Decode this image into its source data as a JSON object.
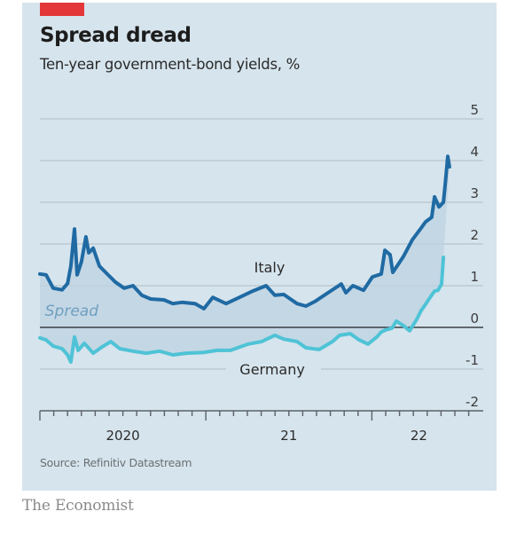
{
  "header": {
    "title": "Spread dread",
    "subtitle": "Ten-year government-bond yields, %"
  },
  "footer": {
    "source": "Source: Refinitiv Datastream",
    "brand": "The Economist"
  },
  "colors": {
    "panel": "#d6e4ed",
    "accent_red": "#e3373a",
    "italy": "#1f6aa3",
    "germany": "#4fc3d6",
    "spread_fill": "#bdd3e2",
    "gridline": "#b9c4cc",
    "zero_line": "#3a3f44"
  },
  "chart_data": {
    "type": "line",
    "title": "Spread dread",
    "subtitle": "Ten-year government-bond yields, %",
    "xlabel": "",
    "ylabel": "%",
    "ylim": [
      -2,
      5
    ],
    "yticks": [
      5,
      4,
      3,
      2,
      1,
      0,
      -1,
      -2
    ],
    "ytick_labels": [
      "5",
      "4",
      "3",
      "2",
      "1",
      "0",
      "-1",
      "-2"
    ],
    "xlim_months": [
      0,
      31
    ],
    "x_unit": "months since Jan 2020",
    "xtick_major": [
      0,
      12,
      24
    ],
    "xtick_labels": [
      {
        "text": "2020",
        "at": 6
      },
      {
        "text": "21",
        "at": 18
      },
      {
        "text": "22",
        "at": 27.4
      }
    ],
    "grid": true,
    "annotations": [
      {
        "text": "Italy",
        "series": "Italy",
        "x": 16.6,
        "y": 1.45,
        "style": "normal"
      },
      {
        "text": "Spread",
        "x": 2.3,
        "y": 0.4,
        "style": "italic"
      },
      {
        "text": "Germany",
        "series": "Germany",
        "x": 16.8,
        "y": -1.0,
        "style": "normal"
      }
    ],
    "shaded_region": "between Italy and Germany (spread)",
    "series": [
      {
        "name": "Italy",
        "x": [
          0,
          0.45,
          0.96,
          1.6,
          2.0,
          2.24,
          2.5,
          2.69,
          3.0,
          3.33,
          3.53,
          3.85,
          4.3,
          4.81,
          5.45,
          6.09,
          6.73,
          7.37,
          8.01,
          8.97,
          9.61,
          10.26,
          11.22,
          11.86,
          12.5,
          13.46,
          14.42,
          15.38,
          16.35,
          16.99,
          17.63,
          18.59,
          19.23,
          19.87,
          20.83,
          21.79,
          22.12,
          22.63,
          23.4,
          24.04,
          24.68,
          24.94,
          25.32,
          25.51,
          26.28,
          26.92,
          27.56,
          27.88,
          28.33,
          28.53,
          28.85,
          29.17,
          29.29,
          29.49,
          29.61
        ],
        "values": [
          1.28,
          1.26,
          0.94,
          0.9,
          1.05,
          1.47,
          2.36,
          1.26,
          1.57,
          2.17,
          1.79,
          1.9,
          1.47,
          1.3,
          1.09,
          0.94,
          1.0,
          0.77,
          0.68,
          0.66,
          0.57,
          0.6,
          0.57,
          0.45,
          0.72,
          0.57,
          0.72,
          0.87,
          1.0,
          0.77,
          0.79,
          0.57,
          0.51,
          0.62,
          0.83,
          1.04,
          0.83,
          1.0,
          0.89,
          1.21,
          1.28,
          1.85,
          1.74,
          1.32,
          1.7,
          2.1,
          2.38,
          2.53,
          2.64,
          3.13,
          2.89,
          3.0,
          3.38,
          4.1,
          3.85
        ]
      },
      {
        "name": "Germany",
        "x": [
          0,
          0.45,
          0.96,
          1.6,
          2.0,
          2.24,
          2.5,
          2.76,
          3.21,
          3.85,
          4.49,
          5.13,
          5.77,
          6.73,
          7.69,
          8.65,
          9.62,
          10.58,
          11.86,
          12.82,
          13.78,
          15.06,
          16.03,
          16.99,
          17.63,
          18.59,
          19.23,
          20.19,
          21.15,
          21.67,
          22.44,
          23.08,
          23.72,
          24.36,
          24.68,
          25.0,
          25.45,
          25.77,
          26.28,
          26.73,
          27.24,
          27.56,
          27.88,
          28.21,
          28.53,
          28.78,
          29.04,
          29.17
        ],
        "values": [
          -0.25,
          -0.3,
          -0.45,
          -0.51,
          -0.66,
          -0.83,
          -0.23,
          -0.55,
          -0.38,
          -0.62,
          -0.47,
          -0.34,
          -0.51,
          -0.57,
          -0.62,
          -0.57,
          -0.66,
          -0.62,
          -0.6,
          -0.55,
          -0.55,
          -0.4,
          -0.34,
          -0.19,
          -0.28,
          -0.34,
          -0.49,
          -0.53,
          -0.34,
          -0.19,
          -0.15,
          -0.3,
          -0.4,
          -0.23,
          -0.11,
          -0.06,
          -0.02,
          0.15,
          0.04,
          -0.08,
          0.19,
          0.4,
          0.55,
          0.72,
          0.87,
          0.89,
          1.04,
          1.68
        ]
      }
    ]
  }
}
